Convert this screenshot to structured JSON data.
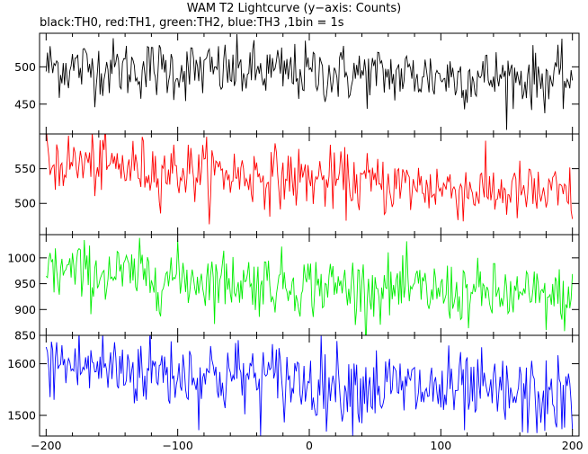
{
  "chart_data": {
    "type": "line",
    "title": "WAM T2 Lightcurve (y−axis: Counts)",
    "subtitle": "black:TH0, red:TH1, green:TH2, blue:TH3 ,1bin = 1s",
    "x_ticks": [
      "−200",
      "−100",
      "0",
      "100",
      "200"
    ],
    "x_tick_values": [
      -200,
      -100,
      0,
      100,
      200
    ],
    "xlim": [
      -205,
      205
    ],
    "panels": [
      {
        "color": "#000000",
        "ylim": [
          410,
          545
        ],
        "y_ticks": [
          "450",
          "500"
        ],
        "y_tick_values": [
          450,
          500
        ],
        "start_level": 500,
        "end_level": 483,
        "sigma": 20
      },
      {
        "color": "#ff0000",
        "ylim": [
          455,
          600
        ],
        "y_ticks": [
          "500",
          "550"
        ],
        "y_tick_values": [
          500,
          550
        ],
        "start_level": 560,
        "end_level": 510,
        "sigma": 22
      },
      {
        "color": "#00ee00",
        "ylim": [
          850,
          1045
        ],
        "y_ticks": [
          "850",
          "900",
          "950",
          "1000"
        ],
        "y_tick_values": [
          850,
          900,
          950,
          1000
        ],
        "start_level": 975,
        "end_level": 920,
        "sigma": 30
      },
      {
        "color": "#0000ff",
        "ylim": [
          1460,
          1655
        ],
        "y_ticks": [
          "1500",
          "1600"
        ],
        "y_tick_values": [
          1500,
          1600
        ],
        "start_level": 1600,
        "end_level": 1530,
        "sigma": 38
      }
    ]
  }
}
